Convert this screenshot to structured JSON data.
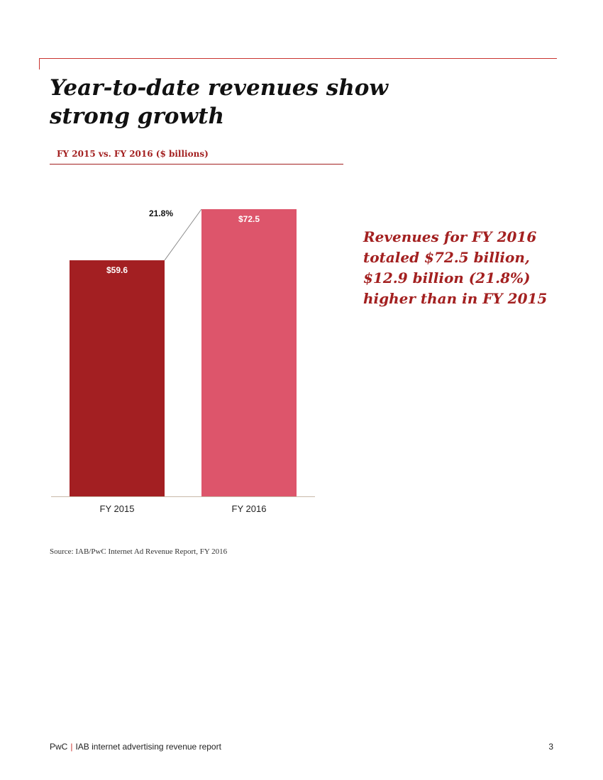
{
  "page": {
    "title": "Year-to-date revenues show strong growth",
    "subtitle": "FY 2015 vs. FY 2016 ($ billions)",
    "highlight": "Revenues for FY 2016 totaled $72.5 billion, $12.9 billion (21.8%) higher than in FY 2015",
    "source": "Source: IAB/PwC Internet Ad Revenue Report, FY 2016",
    "footer_brand": "PwC",
    "footer_separator": "|",
    "footer_text": "IAB internet advertising revenue report",
    "page_number": "3"
  },
  "colors": {
    "accent": "#a32020",
    "bar_fy2015": "#a31f22",
    "bar_fy2016": "#dd556b",
    "axis": "#c8b9a8"
  },
  "chart_data": {
    "type": "bar",
    "title": "FY 2015 vs. FY 2016 ($ billions)",
    "categories": [
      "FY 2015",
      "FY 2016"
    ],
    "values": [
      59.6,
      72.5
    ],
    "data_labels": [
      "$59.6",
      "$72.5"
    ],
    "growth_label": "21.8%",
    "ylim": [
      0,
      72.5
    ],
    "grid": false,
    "legend": "none"
  }
}
